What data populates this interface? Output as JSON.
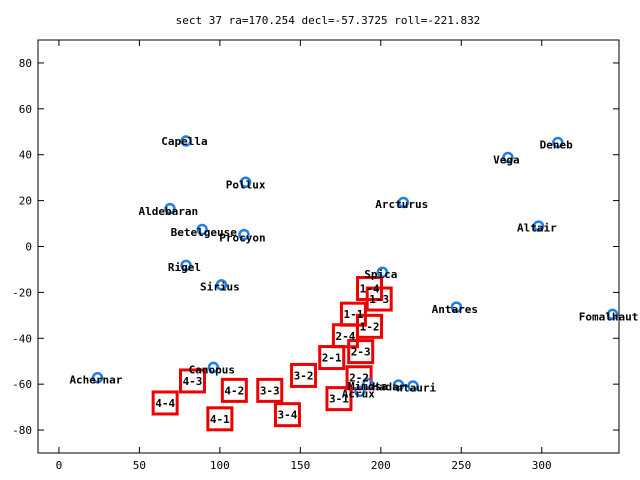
{
  "chart_data": {
    "type": "scatter",
    "title": "sect 37 ra=170.254 decl=-57.3725 roll=-221.832",
    "xlim": [
      -13,
      348
    ],
    "ylim": [
      -90,
      90
    ],
    "xticks": [
      0,
      50,
      100,
      150,
      200,
      250,
      300
    ],
    "yticks": [
      -80,
      -60,
      -40,
      -20,
      0,
      20,
      40,
      60,
      80
    ],
    "grid": false,
    "colors": {
      "stars": "#1f7fe8",
      "boxes": "#ee0000",
      "axes": "#000000"
    },
    "stars": [
      {
        "name": "Capella",
        "ra": 79,
        "dec": 46
      },
      {
        "name": "Pollux",
        "ra": 116,
        "dec": 28
      },
      {
        "name": "Aldebaran",
        "ra": 69,
        "dec": 16.5
      },
      {
        "name": "Betelgeuse",
        "ra": 89,
        "dec": 7.4
      },
      {
        "name": "Procyon",
        "ra": 115,
        "dec": 5.2
      },
      {
        "name": "Rigel",
        "ra": 79,
        "dec": -8.2
      },
      {
        "name": "Sirius",
        "ra": 101,
        "dec": -16.7
      },
      {
        "name": "Canopus",
        "ra": 96,
        "dec": -52.7
      },
      {
        "name": "Achernar",
        "ra": 24,
        "dec": -57.2
      },
      {
        "name": "Arcturus",
        "ra": 214,
        "dec": 19.2
      },
      {
        "name": "Spica",
        "ra": 201,
        "dec": -11.2
      },
      {
        "name": "Antares",
        "ra": 247,
        "dec": -26.4
      },
      {
        "name": "Vega",
        "ra": 279,
        "dec": 38.8
      },
      {
        "name": "Deneb",
        "ra": 310,
        "dec": 45.3
      },
      {
        "name": "Altair",
        "ra": 298,
        "dec": 8.9
      },
      {
        "name": "Fomalhaut",
        "ra": 344,
        "dec": -29.6
      },
      {
        "name": "Acrux",
        "ra": 187,
        "dec": -63.1
      },
      {
        "name": "Mimosa",
        "ra": 192,
        "dec": -59.7
      },
      {
        "name": "Hadar",
        "ra": 211,
        "dec": -60.4
      },
      {
        "name": "Rigil Kentaurus",
        "ra": 220,
        "dec": -60.8
      }
    ],
    "star_labels": [
      {
        "star": "Capella",
        "text": "Capella",
        "ra": 78,
        "dec": 46,
        "anchor": "middle"
      },
      {
        "star": "Pollux",
        "text": "Pollux",
        "ra": 116,
        "dec": 27,
        "anchor": "middle"
      },
      {
        "star": "Aldebaran",
        "text": "Aldebaran",
        "ra": 68,
        "dec": 15.5,
        "anchor": "middle"
      },
      {
        "star": "Betelgeuse",
        "text": "Betelgeuse",
        "ra": 90,
        "dec": 6.4,
        "anchor": "middle"
      },
      {
        "star": "Procyon",
        "text": "Procyon",
        "ra": 114,
        "dec": 4,
        "anchor": "middle"
      },
      {
        "star": "Rigel",
        "text": "Rigel",
        "ra": 78,
        "dec": -9,
        "anchor": "middle"
      },
      {
        "star": "Sirius",
        "text": "Sirius",
        "ra": 100,
        "dec": -17.5,
        "anchor": "middle"
      },
      {
        "star": "Canopus",
        "text": "Canopus",
        "ra": 95,
        "dec": -53.5,
        "anchor": "middle"
      },
      {
        "star": "Achernar",
        "text": "Achernar",
        "ra": 23,
        "dec": -58,
        "anchor": "middle"
      },
      {
        "star": "Arcturus",
        "text": "Arcturus",
        "ra": 213,
        "dec": 18.5,
        "anchor": "middle"
      },
      {
        "star": "Spica",
        "text": "Spica",
        "ra": 200,
        "dec": -12,
        "anchor": "middle"
      },
      {
        "star": "Antares",
        "text": "Antares",
        "ra": 246,
        "dec": -27.2,
        "anchor": "middle"
      },
      {
        "star": "Vega",
        "text": "Vega",
        "ra": 278,
        "dec": 38,
        "anchor": "middle"
      },
      {
        "star": "Deneb",
        "text": "Deneb",
        "ra": 309,
        "dec": 44.5,
        "anchor": "middle"
      },
      {
        "star": "Altair",
        "text": "Altair",
        "ra": 297,
        "dec": 8.3,
        "anchor": "middle"
      },
      {
        "star": "Fomalhaut",
        "text": "Fomalhaut",
        "ra": 323,
        "dec": -30.5,
        "anchor": "start"
      },
      {
        "star": "Acrux",
        "text": "Acrux",
        "ra": 186,
        "dec": -64,
        "anchor": "middle"
      },
      {
        "star": "Mimosa",
        "text": "Mimosa",
        "ra": 192,
        "dec": -60.7,
        "anchor": "middle"
      },
      {
        "star": "Hadar",
        "text": "Hadar",
        "ra": 205,
        "dec": -61,
        "anchor": "middle"
      },
      {
        "star": "Rigil Kentaurus",
        "text": "ntauri",
        "ra": 222,
        "dec": -61.5,
        "anchor": "middle"
      }
    ],
    "sectors": [
      {
        "label": "1-1",
        "ra": 183,
        "dec": -29.5
      },
      {
        "label": "1-2",
        "ra": 193,
        "dec": -34.8
      },
      {
        "label": "1-3",
        "ra": 199,
        "dec": -22.9
      },
      {
        "label": "1-4",
        "ra": 193,
        "dec": -18.3
      },
      {
        "label": "2-1",
        "ra": 169.5,
        "dec": -48.4
      },
      {
        "label": "2-2",
        "ra": 186.5,
        "dec": -57.2
      },
      {
        "label": "2-3",
        "ra": 187.5,
        "dec": -45.8
      },
      {
        "label": "2-4",
        "ra": 178,
        "dec": -38.9
      },
      {
        "label": "3-1",
        "ra": 174,
        "dec": -66.3
      },
      {
        "label": "3-2",
        "ra": 152,
        "dec": -56.2
      },
      {
        "label": "3-3",
        "ra": 131,
        "dec": -62.7
      },
      {
        "label": "3-4",
        "ra": 142,
        "dec": -73.3
      },
      {
        "label": "4-1",
        "ra": 100,
        "dec": -75.1
      },
      {
        "label": "4-2",
        "ra": 109,
        "dec": -62.7
      },
      {
        "label": "4-3",
        "ra": 83,
        "dec": -58.6
      },
      {
        "label": "4-4",
        "ra": 66,
        "dec": -68.2
      }
    ]
  }
}
